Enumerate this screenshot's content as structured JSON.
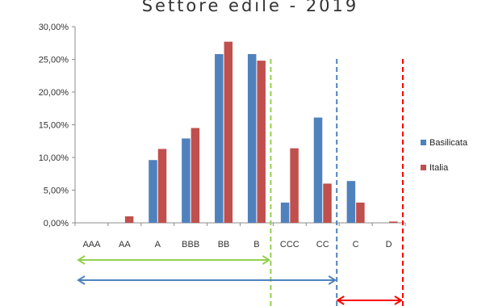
{
  "chart_data": {
    "type": "bar",
    "title": "Settore edile - 2019",
    "xlabel": "",
    "ylabel": "",
    "categories": [
      "AAA",
      "AA",
      "A",
      "BBB",
      "BB",
      "B",
      "CCC",
      "CC",
      "C",
      "D"
    ],
    "series": [
      {
        "name": "Basilicata",
        "color": "#4f81bd",
        "values": [
          0,
          0,
          9.6,
          12.9,
          25.8,
          25.8,
          3.1,
          16.1,
          6.4,
          0
        ]
      },
      {
        "name": "Italia",
        "color": "#c0504d",
        "values": [
          0,
          1.0,
          11.3,
          14.5,
          27.7,
          24.8,
          11.4,
          6.0,
          3.1,
          0.2
        ]
      }
    ],
    "ylim": [
      0,
      30
    ],
    "yticks": [
      "0,00%",
      "5,00%",
      "10,00%",
      "15,00%",
      "20,00%",
      "25,00%",
      "30,00%"
    ],
    "grid": false,
    "legend_position": "right",
    "annotations": {
      "dashed_lines": [
        {
          "after_category": "B",
          "color": "#92d050"
        },
        {
          "after_category": "CC",
          "color": "#4f81bd"
        },
        {
          "after_category": "D",
          "color": "#ff0000"
        }
      ],
      "arrows": [
        {
          "from_category": "AAA",
          "to_category": "B",
          "color": "#92d050"
        },
        {
          "from_category": "AAA",
          "to_category": "CC",
          "color": "#4f81bd"
        },
        {
          "from_category": "C",
          "to_category": "D",
          "color": "#ff0000"
        }
      ]
    }
  }
}
